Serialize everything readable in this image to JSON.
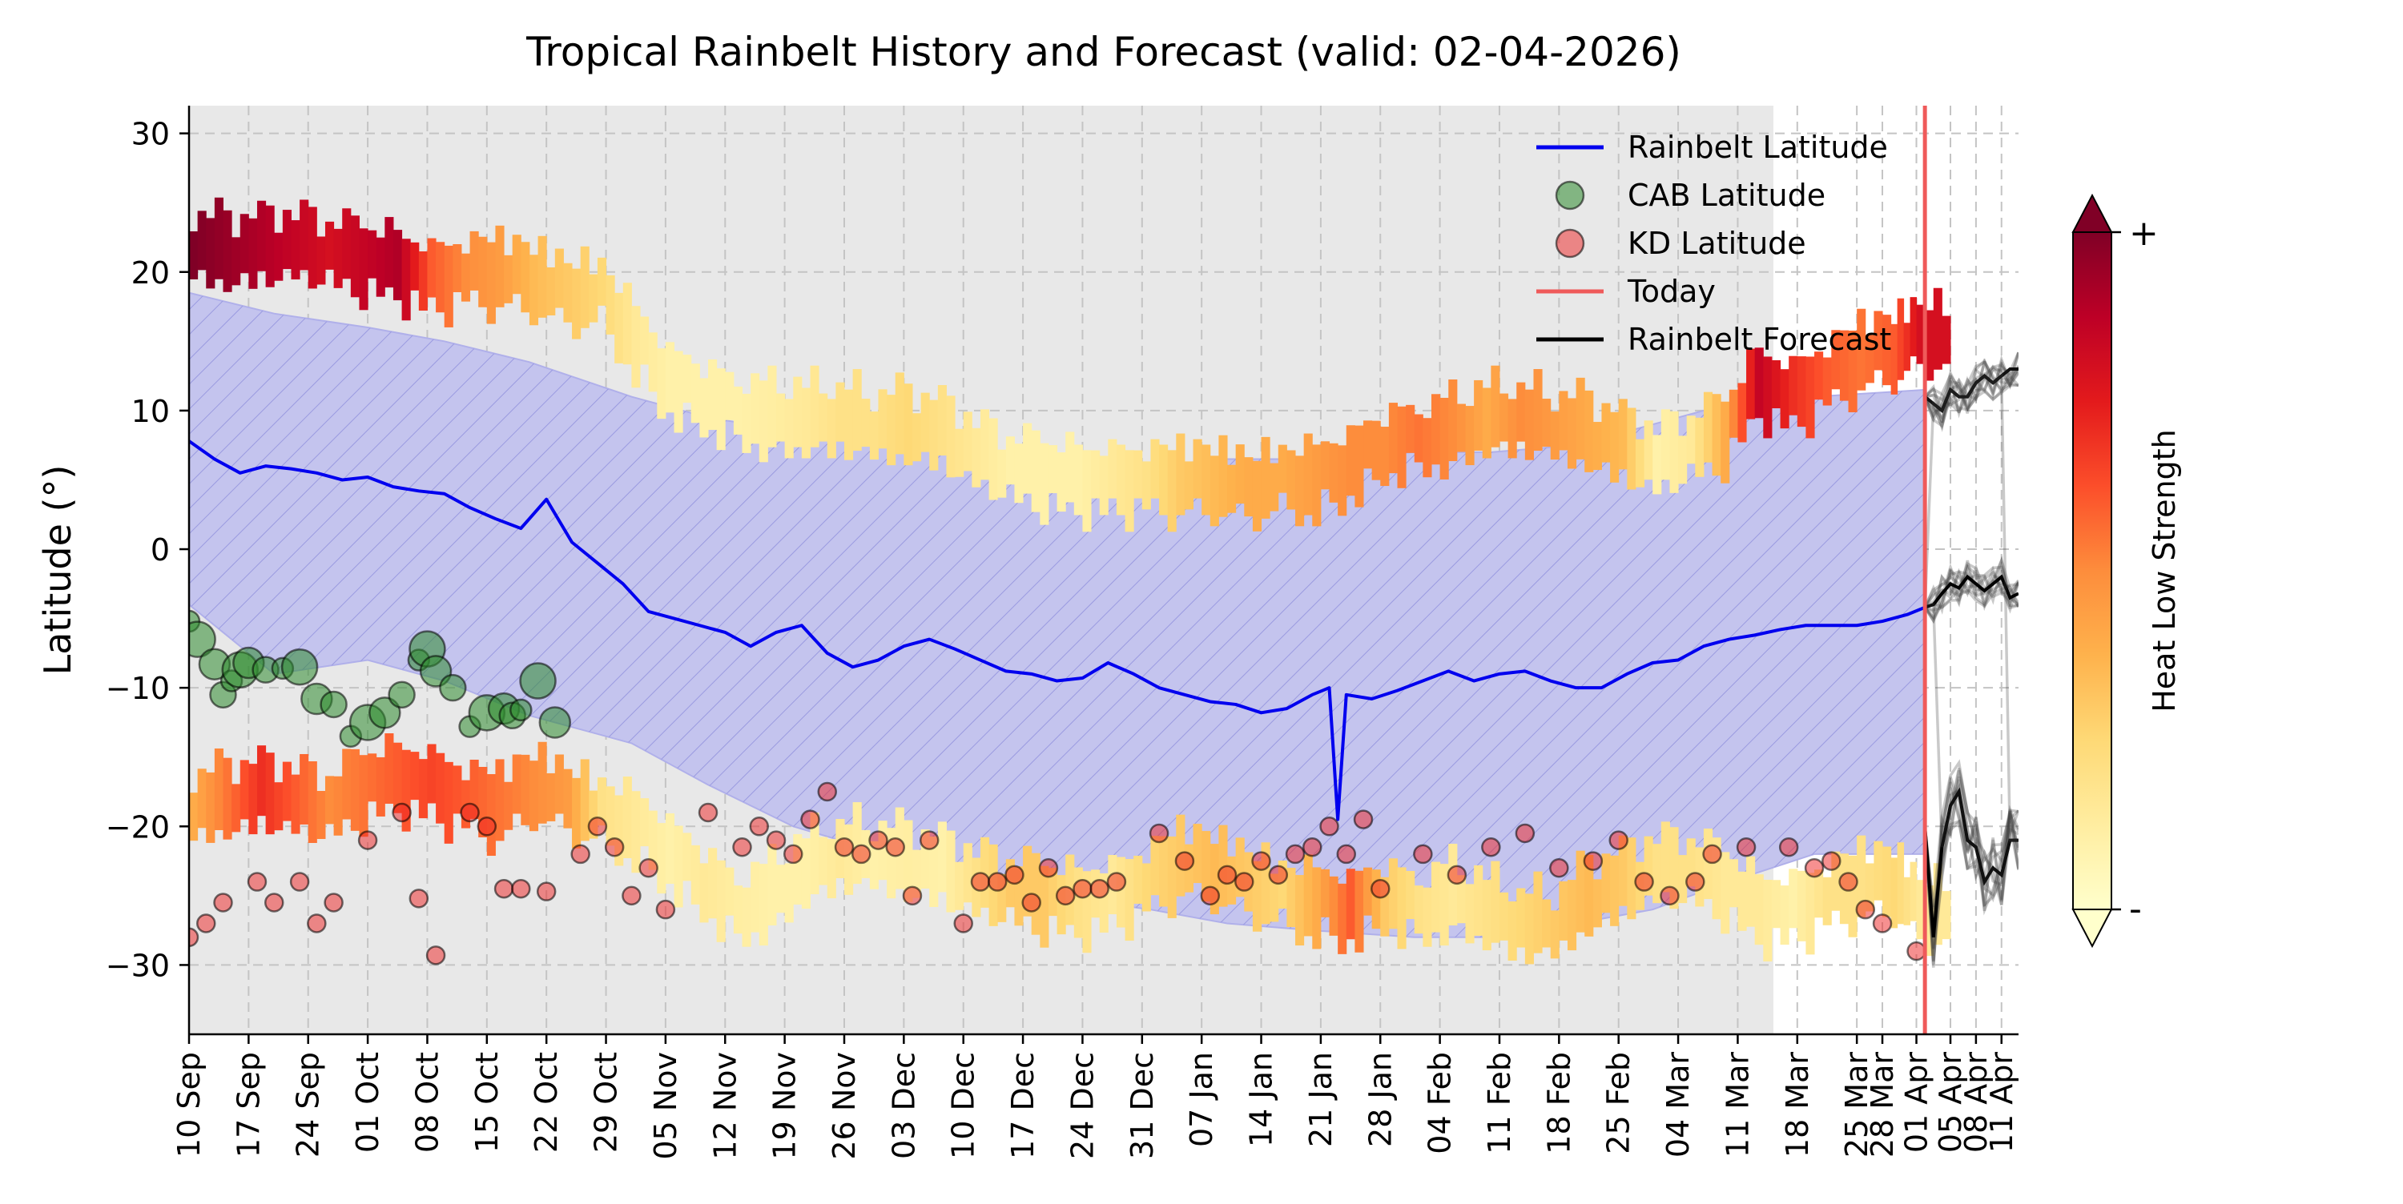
{
  "chart_data": {
    "type": "line",
    "title": "Tropical Rainbelt History and Forecast (valid: 02-04-2026)",
    "ylabel": "Latitude (°)",
    "xlabel": "",
    "ylim": [
      -35,
      32
    ],
    "xlim": [
      "2025-09-10",
      "2026-04-13"
    ],
    "grid": true,
    "yticks": [
      30,
      20,
      10,
      0,
      -10,
      -20,
      -30
    ],
    "ytick_labels": [
      "30",
      "20",
      "10",
      "0",
      "−10",
      "−20",
      "−30"
    ],
    "xticks": [
      {
        "date": "2025-09-10",
        "label": "10 Sep"
      },
      {
        "date": "2025-09-17",
        "label": "17 Sep"
      },
      {
        "date": "2025-09-24",
        "label": "24 Sep"
      },
      {
        "date": "2025-10-01",
        "label": "01 Oct"
      },
      {
        "date": "2025-10-08",
        "label": "08 Oct"
      },
      {
        "date": "2025-10-15",
        "label": "15 Oct"
      },
      {
        "date": "2025-10-22",
        "label": "22 Oct"
      },
      {
        "date": "2025-10-29",
        "label": "29 Oct"
      },
      {
        "date": "2025-11-05",
        "label": "05 Nov"
      },
      {
        "date": "2025-11-12",
        "label": "12 Nov"
      },
      {
        "date": "2025-11-19",
        "label": "19 Nov"
      },
      {
        "date": "2025-11-26",
        "label": "26 Nov"
      },
      {
        "date": "2025-12-03",
        "label": "03 Dec"
      },
      {
        "date": "2025-12-10",
        "label": "10 Dec"
      },
      {
        "date": "2025-12-17",
        "label": "17 Dec"
      },
      {
        "date": "2025-12-24",
        "label": "24 Dec"
      },
      {
        "date": "2025-12-31",
        "label": "31 Dec"
      },
      {
        "date": "2026-01-07",
        "label": "07 Jan"
      },
      {
        "date": "2026-01-14",
        "label": "14 Jan"
      },
      {
        "date": "2026-01-21",
        "label": "21 Jan"
      },
      {
        "date": "2026-01-28",
        "label": "28 Jan"
      },
      {
        "date": "2026-02-04",
        "label": "04 Feb"
      },
      {
        "date": "2026-02-11",
        "label": "11 Feb"
      },
      {
        "date": "2026-02-18",
        "label": "18 Feb"
      },
      {
        "date": "2026-02-25",
        "label": "25 Feb"
      },
      {
        "date": "2026-03-04",
        "label": "04 Mar"
      },
      {
        "date": "2026-03-11",
        "label": "11 Mar"
      },
      {
        "date": "2026-03-18",
        "label": "18 Mar"
      },
      {
        "date": "2026-03-25",
        "label": "25 Mar"
      },
      {
        "date": "2026-03-28",
        "label": "28 Mar"
      },
      {
        "date": "2026-04-01",
        "label": "01 Apr"
      },
      {
        "date": "2026-04-05",
        "label": "05 Apr"
      },
      {
        "date": "2026-04-08",
        "label": "08 Apr"
      },
      {
        "date": "2026-04-11",
        "label": "11 Apr"
      }
    ],
    "today": "2026-04-02",
    "legend": {
      "placement": "top-right",
      "entries": [
        {
          "label": "Rainbelt Latitude",
          "kind": "line",
          "color": "#0000ee"
        },
        {
          "label": "CAB Latitude",
          "kind": "marker",
          "color": "#2e8b2e"
        },
        {
          "label": "KD Latitude",
          "kind": "marker",
          "color": "#ee2222"
        },
        {
          "label": "Today",
          "kind": "line",
          "color": "#ef5a5a"
        },
        {
          "label": "Rainbelt Forecast",
          "kind": "line",
          "color": "#000000"
        }
      ]
    },
    "colorbar": {
      "label": "Heat Low Strength",
      "top_label": "+",
      "bottom_label": "-",
      "colors": [
        "#ffffcc",
        "#ffeda0",
        "#fed976",
        "#feb24c",
        "#fd8d3c",
        "#fc4e2a",
        "#e31a1c",
        "#bd0026",
        "#800026"
      ]
    },
    "colors": {
      "background": "#e8e8e8",
      "band_fill": "#c4c4ee",
      "band_hatch": "#9a9ae0",
      "rainbelt": "#0000ee",
      "today": "#ef5a5a",
      "forecast": "#000000"
    },
    "rainbelt_latitude": {
      "x": [
        "2025-09-10",
        "2025-09-13",
        "2025-09-16",
        "2025-09-19",
        "2025-09-22",
        "2025-09-25",
        "2025-09-28",
        "2025-10-01",
        "2025-10-04",
        "2025-10-07",
        "2025-10-10",
        "2025-10-13",
        "2025-10-16",
        "2025-10-19",
        "2025-10-22",
        "2025-10-25",
        "2025-10-28",
        "2025-10-31",
        "2025-11-03",
        "2025-11-06",
        "2025-11-09",
        "2025-11-12",
        "2025-11-15",
        "2025-11-18",
        "2025-11-21",
        "2025-11-24",
        "2025-11-27",
        "2025-11-30",
        "2025-12-03",
        "2025-12-06",
        "2025-12-09",
        "2025-12-12",
        "2025-12-15",
        "2025-12-18",
        "2025-12-21",
        "2025-12-24",
        "2025-12-27",
        "2025-12-30",
        "2026-01-02",
        "2026-01-05",
        "2026-01-08",
        "2026-01-11",
        "2026-01-14",
        "2026-01-17",
        "2026-01-20",
        "2026-01-22",
        "2026-01-23",
        "2026-01-24",
        "2026-01-27",
        "2026-01-30",
        "2026-02-02",
        "2026-02-05",
        "2026-02-08",
        "2026-02-11",
        "2026-02-14",
        "2026-02-17",
        "2026-02-20",
        "2026-02-23",
        "2026-02-26",
        "2026-03-01",
        "2026-03-04",
        "2026-03-07",
        "2026-03-10",
        "2026-03-13",
        "2026-03-16",
        "2026-03-19",
        "2026-03-22",
        "2026-03-25",
        "2026-03-28",
        "2026-03-31",
        "2026-04-02"
      ],
      "y": [
        7.8,
        6.5,
        5.5,
        6.0,
        5.8,
        5.5,
        5.0,
        5.2,
        4.5,
        4.2,
        4.0,
        3.0,
        2.2,
        1.5,
        3.6,
        0.5,
        -1.0,
        -2.5,
        -4.5,
        -5.0,
        -5.5,
        -6.0,
        -7.0,
        -6.0,
        -5.5,
        -7.5,
        -8.5,
        -8.0,
        -7.0,
        -6.5,
        -7.2,
        -8.0,
        -8.8,
        -9.0,
        -9.5,
        -9.3,
        -8.2,
        -9.0,
        -10.0,
        -10.5,
        -11.0,
        -11.2,
        -11.8,
        -11.5,
        -10.5,
        -10.0,
        -19.5,
        -10.5,
        -10.8,
        -10.2,
        -9.5,
        -8.8,
        -9.5,
        -9.0,
        -8.8,
        -9.5,
        -10.0,
        -10.0,
        -9.0,
        -8.2,
        -8.0,
        -7.0,
        -6.5,
        -6.2,
        -5.8,
        -5.5,
        -5.5,
        -5.5,
        -5.2,
        -4.7,
        -4.2
      ]
    },
    "rainbelt_band": {
      "x": [
        "2025-09-10",
        "2025-09-20",
        "2025-10-01",
        "2025-10-10",
        "2025-10-20",
        "2025-11-01",
        "2025-11-10",
        "2025-11-20",
        "2025-12-01",
        "2025-12-10",
        "2025-12-20",
        "2026-01-01",
        "2026-01-10",
        "2026-01-20",
        "2026-02-01",
        "2026-02-10",
        "2026-02-20",
        "2026-03-01",
        "2026-03-10",
        "2026-03-20",
        "2026-04-02"
      ],
      "upper": [
        18.5,
        17.0,
        16.0,
        15.0,
        13.5,
        11.0,
        9.5,
        8.5,
        8.0,
        7.0,
        6.5,
        6.0,
        6.5,
        6.5,
        7.0,
        7.0,
        7.5,
        9.0,
        10.5,
        11.0,
        11.5
      ],
      "lower": [
        -4.0,
        -9.0,
        -8.0,
        -9.5,
        -12.0,
        -14.0,
        -17.0,
        -20.0,
        -22.0,
        -24.0,
        -25.0,
        -26.0,
        -27.0,
        -27.5,
        -28.0,
        -28.0,
        -27.0,
        -26.0,
        -24.0,
        -22.0,
        -22.0
      ]
    },
    "cab_latitude": {
      "x": [
        "2025-09-10",
        "2025-09-11",
        "2025-09-13",
        "2025-09-14",
        "2025-09-15",
        "2025-09-16",
        "2025-09-17",
        "2025-09-19",
        "2025-09-21",
        "2025-09-23",
        "2025-09-25",
        "2025-09-27",
        "2025-09-29",
        "2025-10-01",
        "2025-10-03",
        "2025-10-05",
        "2025-10-07",
        "2025-10-08",
        "2025-10-09",
        "2025-10-11",
        "2025-10-13",
        "2025-10-15",
        "2025-10-17",
        "2025-10-18",
        "2025-10-19",
        "2025-10-21",
        "2025-10-23"
      ],
      "y": [
        -5.2,
        -6.5,
        -8.3,
        -10.5,
        -9.5,
        -8.7,
        -8.2,
        -8.7,
        -8.6,
        -8.5,
        -10.8,
        -11.2,
        -13.5,
        -12.5,
        -11.8,
        -10.5,
        -8.0,
        -7.2,
        -8.8,
        -10.0,
        -12.8,
        -11.8,
        -11.5,
        -12.0,
        -11.6,
        -9.5,
        -12.5
      ]
    },
    "kd_latitude": {
      "x": [
        "2025-09-10",
        "2025-09-12",
        "2025-09-14",
        "2025-09-18",
        "2025-09-20",
        "2025-09-23",
        "2025-09-25",
        "2025-09-27",
        "2025-10-01",
        "2025-10-05",
        "2025-10-07",
        "2025-10-09",
        "2025-10-13",
        "2025-10-15",
        "2025-10-17",
        "2025-10-19",
        "2025-10-22",
        "2025-10-26",
        "2025-10-28",
        "2025-10-30",
        "2025-11-01",
        "2025-11-03",
        "2025-11-05",
        "2025-11-10",
        "2025-11-14",
        "2025-11-16",
        "2025-11-18",
        "2025-11-20",
        "2025-11-22",
        "2025-11-24",
        "2025-11-26",
        "2025-11-28",
        "2025-11-30",
        "2025-12-02",
        "2025-12-04",
        "2025-12-06",
        "2025-12-10",
        "2025-12-12",
        "2025-12-14",
        "2025-12-16",
        "2025-12-18",
        "2025-12-20",
        "2025-12-22",
        "2025-12-24",
        "2025-12-26",
        "2025-12-28",
        "2026-01-02",
        "2026-01-05",
        "2026-01-08",
        "2026-01-10",
        "2026-01-12",
        "2026-01-14",
        "2026-01-16",
        "2026-01-18",
        "2026-01-20",
        "2026-01-22",
        "2026-01-24",
        "2026-01-26",
        "2026-01-28",
        "2026-02-02",
        "2026-02-06",
        "2026-02-10",
        "2026-02-14",
        "2026-02-18",
        "2026-02-22",
        "2026-02-25",
        "2026-02-28",
        "2026-03-03",
        "2026-03-06",
        "2026-03-08",
        "2026-03-12",
        "2026-03-17",
        "2026-03-20",
        "2026-03-22",
        "2026-03-24",
        "2026-03-26",
        "2026-03-28",
        "2026-04-01"
      ],
      "y": [
        -28.0,
        -27.0,
        -25.5,
        -24.0,
        -25.5,
        -24.0,
        -27.0,
        -25.5,
        -21.0,
        -19.0,
        -25.2,
        -29.3,
        -19.0,
        -20.0,
        -24.5,
        -24.5,
        -24.7,
        -22.0,
        -20.0,
        -21.5,
        -25.0,
        -23.0,
        -26.0,
        -19.0,
        -21.5,
        -20.0,
        -21.0,
        -22.0,
        -19.5,
        -17.5,
        -21.5,
        -22.0,
        -21.0,
        -21.5,
        -25.0,
        -21.0,
        -27.0,
        -24.0,
        -24.0,
        -23.5,
        -25.5,
        -23.0,
        -25.0,
        -24.5,
        -24.5,
        -24.0,
        -20.5,
        -22.5,
        -25.0,
        -23.5,
        -24.0,
        -22.5,
        -23.5,
        -22.0,
        -21.5,
        -20.0,
        -22.0,
        -19.5,
        -24.5,
        -22.0,
        -23.5,
        -21.5,
        -20.5,
        -23.0,
        -22.5,
        -21.0,
        -24.0,
        -25.0,
        -24.0,
        -22.0,
        -21.5,
        -21.5,
        -23.0,
        -22.5,
        -24.0,
        -26.0,
        -27.0,
        -29.0
      ]
    },
    "heat_low_upper": {
      "x": [
        "2025-09-10",
        "2025-09-14",
        "2025-09-18",
        "2025-09-22",
        "2025-09-26",
        "2025-09-30",
        "2025-10-04",
        "2025-10-08",
        "2025-10-12",
        "2025-10-16",
        "2025-10-20",
        "2025-10-24",
        "2025-10-28",
        "2025-11-01",
        "2025-11-05",
        "2025-11-09",
        "2025-11-13",
        "2025-11-17",
        "2025-11-21",
        "2025-11-25",
        "2025-11-29",
        "2025-12-03",
        "2025-12-07",
        "2025-12-11",
        "2025-12-15",
        "2025-12-19",
        "2025-12-23",
        "2025-12-27",
        "2025-12-31",
        "2026-01-04",
        "2026-01-08",
        "2026-01-12",
        "2026-01-16",
        "2026-01-20",
        "2026-01-24",
        "2026-01-28",
        "2026-02-01",
        "2026-02-05",
        "2026-02-09",
        "2026-02-13",
        "2026-02-17",
        "2026-02-21",
        "2026-02-25",
        "2026-03-01",
        "2026-03-05",
        "2026-03-09",
        "2026-03-13",
        "2026-03-17",
        "2026-03-21",
        "2026-03-25",
        "2026-03-29",
        "2026-04-01"
      ],
      "y": [
        22,
        21.5,
        21.8,
        22,
        21.5,
        21,
        20.5,
        19.5,
        20,
        20,
        19.5,
        18.5,
        18.5,
        15,
        12,
        11,
        10,
        9.5,
        9.5,
        9.5,
        9,
        9,
        8.5,
        7,
        6,
        5.5,
        5,
        5,
        5,
        5,
        5,
        4.5,
        5,
        5,
        6,
        7.5,
        8,
        8.5,
        9.5,
        9.5,
        9,
        8.5,
        7.5,
        6.5,
        7.5,
        8.5,
        12,
        11,
        12.5,
        14,
        14.5,
        15.5
      ],
      "strength": [
        1.0,
        0.95,
        0.9,
        0.85,
        0.8,
        0.85,
        0.9,
        0.6,
        0.5,
        0.45,
        0.35,
        0.3,
        0.25,
        0.15,
        0.1,
        0.1,
        0.1,
        0.12,
        0.15,
        0.2,
        0.2,
        0.25,
        0.2,
        0.15,
        0.1,
        0.1,
        0.1,
        0.15,
        0.2,
        0.3,
        0.35,
        0.4,
        0.4,
        0.45,
        0.5,
        0.5,
        0.55,
        0.5,
        0.4,
        0.5,
        0.45,
        0.4,
        0.35,
        0.1,
        0.15,
        0.4,
        0.85,
        0.7,
        0.6,
        0.55,
        0.6,
        0.8
      ]
    },
    "heat_low_lower": {
      "x": [
        "2025-09-10",
        "2025-09-14",
        "2025-09-18",
        "2025-09-22",
        "2025-09-26",
        "2025-09-30",
        "2025-10-04",
        "2025-10-08",
        "2025-10-12",
        "2025-10-16",
        "2025-10-20",
        "2025-10-24",
        "2025-10-28",
        "2025-11-01",
        "2025-11-05",
        "2025-11-09",
        "2025-11-13",
        "2025-11-17",
        "2025-11-21",
        "2025-11-25",
        "2025-11-29",
        "2025-12-03",
        "2025-12-07",
        "2025-12-11",
        "2025-12-15",
        "2025-12-19",
        "2025-12-23",
        "2025-12-27",
        "2025-12-31",
        "2026-01-04",
        "2026-01-08",
        "2026-01-12",
        "2026-01-16",
        "2026-01-20",
        "2026-01-24",
        "2026-01-28",
        "2026-02-01",
        "2026-02-05",
        "2026-02-09",
        "2026-02-13",
        "2026-02-17",
        "2026-02-21",
        "2026-02-25",
        "2026-03-01",
        "2026-03-05",
        "2026-03-09",
        "2026-03-13",
        "2026-03-17",
        "2026-03-21",
        "2026-03-25",
        "2026-03-29",
        "2026-04-01"
      ],
      "y": [
        -18.5,
        -18,
        -17.5,
        -18,
        -18.5,
        -17,
        -16.5,
        -17,
        -18,
        -18.5,
        -17,
        -18,
        -19,
        -20,
        -22,
        -24,
        -26,
        -25,
        -23,
        -22,
        -22,
        -22.5,
        -23,
        -24,
        -24.5,
        -25,
        -25.5,
        -25,
        -24,
        -22.5,
        -23,
        -24,
        -25,
        -25.5,
        -26,
        -25,
        -26,
        -25,
        -26,
        -27,
        -27,
        -25,
        -24,
        -23,
        -23,
        -24,
        -26,
        -26,
        -25,
        -24,
        -24,
        -26
      ],
      "strength": [
        0.4,
        0.55,
        0.7,
        0.6,
        0.5,
        0.55,
        0.6,
        0.65,
        0.6,
        0.55,
        0.5,
        0.45,
        0.2,
        0.15,
        0.1,
        0.15,
        0.12,
        0.1,
        0.1,
        0.15,
        0.1,
        0.12,
        0.1,
        0.2,
        0.3,
        0.3,
        0.2,
        0.15,
        0.25,
        0.3,
        0.35,
        0.3,
        0.25,
        0.4,
        0.6,
        0.3,
        0.2,
        0.15,
        0.2,
        0.25,
        0.3,
        0.35,
        0.3,
        0.2,
        0.2,
        0.15,
        0.15,
        0.1,
        0.2,
        0.2,
        0.25,
        0.15
      ]
    },
    "forecast": {
      "x": [
        "2026-04-02",
        "2026-04-03",
        "2026-04-04",
        "2026-04-05",
        "2026-04-06",
        "2026-04-07",
        "2026-04-08",
        "2026-04-09",
        "2026-04-10",
        "2026-04-11",
        "2026-04-12",
        "2026-04-13"
      ],
      "north": [
        11.0,
        10.5,
        10.0,
        11.5,
        11.0,
        11.0,
        12.0,
        12.5,
        12.0,
        12.5,
        13.0,
        13.0
      ],
      "central": [
        -4.2,
        -4.0,
        -3.2,
        -2.5,
        -2.8,
        -2.0,
        -2.5,
        -3.0,
        -2.5,
        -2.0,
        -3.5,
        -3.2
      ],
      "south": [
        -20.0,
        -28.0,
        -21.5,
        -18.5,
        -17.5,
        -21.0,
        -21.5,
        -24.0,
        -23.0,
        -23.5,
        -21.0,
        -21.0
      ]
    }
  }
}
